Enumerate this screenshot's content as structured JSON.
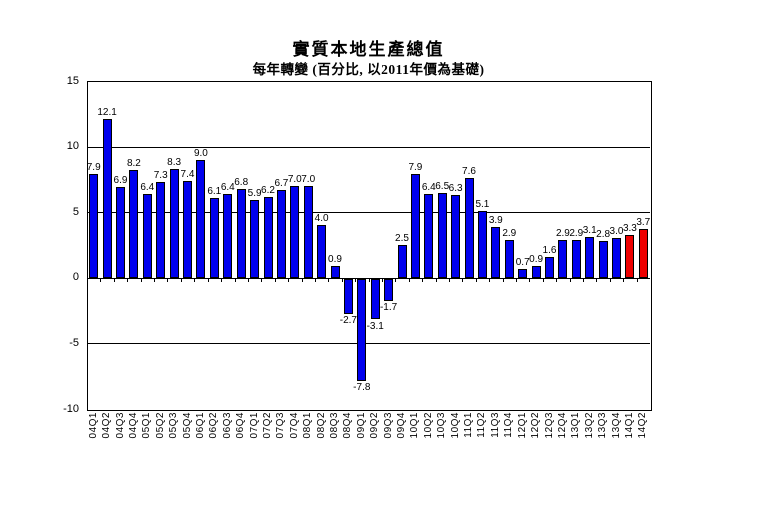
{
  "chart_data": {
    "type": "bar",
    "title": "實質本地生產總值",
    "subtitle": "每年轉變 (百分比, 以2011年價為基礎)",
    "categories": [
      "04Q1",
      "04Q2",
      "04Q3",
      "04Q4",
      "05Q1",
      "05Q2",
      "05Q3",
      "05Q4",
      "06Q1",
      "06Q2",
      "06Q3",
      "06Q4",
      "07Q1",
      "07Q2",
      "07Q3",
      "07Q4",
      "08Q1",
      "08Q2",
      "08Q3",
      "08Q4",
      "09Q1",
      "09Q2",
      "09Q3",
      "09Q4",
      "10Q1",
      "10Q2",
      "10Q3",
      "10Q4",
      "11Q1",
      "11Q2",
      "11Q3",
      "11Q4",
      "12Q1",
      "12Q2",
      "12Q3",
      "12Q4",
      "13Q1",
      "13Q2",
      "13Q3",
      "13Q4",
      "14Q1",
      "14Q2"
    ],
    "values": [
      7.9,
      12.1,
      6.9,
      8.2,
      6.4,
      7.3,
      8.3,
      7.4,
      9.0,
      6.1,
      6.4,
      6.8,
      5.9,
      6.2,
      6.7,
      7.0,
      7.0,
      4.0,
      0.9,
      -2.7,
      -7.8,
      -3.1,
      -1.7,
      2.5,
      7.9,
      6.4,
      6.5,
      6.3,
      7.6,
      5.1,
      3.9,
      2.9,
      0.7,
      0.9,
      1.6,
      2.9,
      2.9,
      3.1,
      2.8,
      3.0,
      3.3,
      3.7
    ],
    "highlight_categories": [
      "14Q1",
      "14Q2"
    ],
    "colors": {
      "bar": "#0000EE",
      "bar_highlight": "#EE0000",
      "bar_border": "#000000",
      "grid": "#000000",
      "text": "#000000",
      "background": "#FFFFFF"
    },
    "ylim": [
      -10,
      15
    ],
    "yticks": [
      15,
      10,
      5,
      0,
      -5,
      -10
    ],
    "gridline_values": [
      10,
      5,
      -5
    ],
    "grid": true,
    "legend": false,
    "value_label_decimals": 1
  }
}
